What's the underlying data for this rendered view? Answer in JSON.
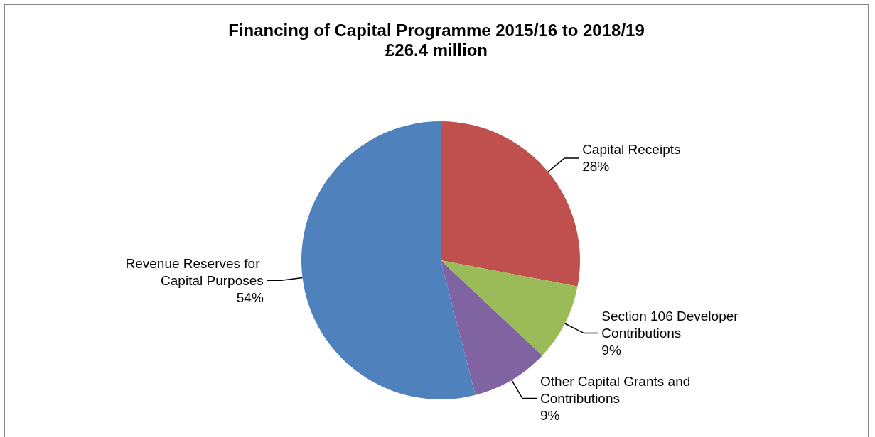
{
  "chart_data": {
    "type": "pie",
    "title": "Financing of Capital Programme 2015/16 to 2018/19",
    "subtitle": "£26.4 million",
    "categories": [
      "Capital Receipts",
      "Section 106 Developer Contributions",
      "Other Capital Grants and Contributions",
      "Revenue Reserves for Capital Purposes"
    ],
    "values": [
      28,
      9,
      9,
      54
    ],
    "value_labels": [
      "28%",
      "9%",
      "9%",
      "54%"
    ],
    "colors": [
      "#c0504d",
      "#9bbb59",
      "#8064a2",
      "#4f81bd"
    ],
    "legend": false
  }
}
